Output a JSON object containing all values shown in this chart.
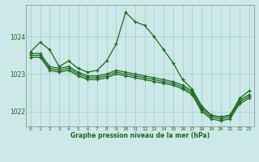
{
  "title": "Graphe pression niveau de la mer (hPa)",
  "bg_color": "#cce8e8",
  "grid_color": "#aad0d0",
  "line_color": "#1a6b1a",
  "xlim": [
    -0.5,
    23.5
  ],
  "ylim": [
    1021.6,
    1024.85
  ],
  "yticks": [
    1022,
    1023,
    1024
  ],
  "xticks": [
    0,
    1,
    2,
    3,
    4,
    5,
    6,
    7,
    8,
    9,
    10,
    11,
    12,
    13,
    14,
    15,
    16,
    17,
    18,
    19,
    20,
    21,
    22,
    23
  ],
  "series_spike": {
    "x": [
      0,
      1,
      2,
      3,
      4,
      5,
      6,
      7,
      8,
      9,
      10,
      11,
      12,
      13,
      14,
      15,
      16,
      17,
      18,
      19,
      20,
      21,
      22,
      23
    ],
    "y": [
      1023.6,
      1023.85,
      1023.65,
      1023.2,
      1023.35,
      1023.15,
      1023.05,
      1023.1,
      1023.35,
      1023.8,
      1024.65,
      1024.4,
      1024.3,
      1024.0,
      1023.65,
      1023.3,
      1022.85,
      1022.6,
      1022.15,
      1021.9,
      1021.85,
      1021.9,
      1022.35,
      1022.55
    ]
  },
  "series_flat1": {
    "x": [
      0,
      1,
      2,
      3,
      4,
      5,
      6,
      7,
      8,
      9,
      10,
      11,
      12,
      13,
      14,
      15,
      16,
      17,
      18,
      19,
      20,
      21,
      22,
      23
    ],
    "y": [
      1023.55,
      1023.55,
      1023.2,
      1023.15,
      1023.2,
      1023.05,
      1022.95,
      1022.95,
      1023.0,
      1023.1,
      1023.05,
      1023.0,
      1022.95,
      1022.9,
      1022.85,
      1022.8,
      1022.7,
      1022.55,
      1022.1,
      1021.9,
      1021.85,
      1021.9,
      1022.3,
      1022.45
    ]
  },
  "series_flat2": {
    "x": [
      0,
      1,
      2,
      3,
      4,
      5,
      6,
      7,
      8,
      9,
      10,
      11,
      12,
      13,
      14,
      15,
      16,
      17,
      18,
      19,
      20,
      21,
      22,
      23
    ],
    "y": [
      1023.5,
      1023.5,
      1023.15,
      1023.1,
      1023.15,
      1023.0,
      1022.9,
      1022.9,
      1022.95,
      1023.05,
      1023.0,
      1022.95,
      1022.9,
      1022.85,
      1022.8,
      1022.75,
      1022.65,
      1022.5,
      1022.05,
      1021.85,
      1021.8,
      1021.85,
      1022.25,
      1022.4
    ]
  },
  "series_flat3": {
    "x": [
      0,
      1,
      2,
      3,
      4,
      5,
      6,
      7,
      8,
      9,
      10,
      11,
      12,
      13,
      14,
      15,
      16,
      17,
      18,
      19,
      20,
      21,
      22,
      23
    ],
    "y": [
      1023.45,
      1023.45,
      1023.1,
      1023.05,
      1023.1,
      1022.95,
      1022.85,
      1022.85,
      1022.9,
      1023.0,
      1022.95,
      1022.9,
      1022.85,
      1022.8,
      1022.75,
      1022.7,
      1022.6,
      1022.45,
      1022.0,
      1021.8,
      1021.75,
      1021.8,
      1022.2,
      1022.35
    ]
  }
}
